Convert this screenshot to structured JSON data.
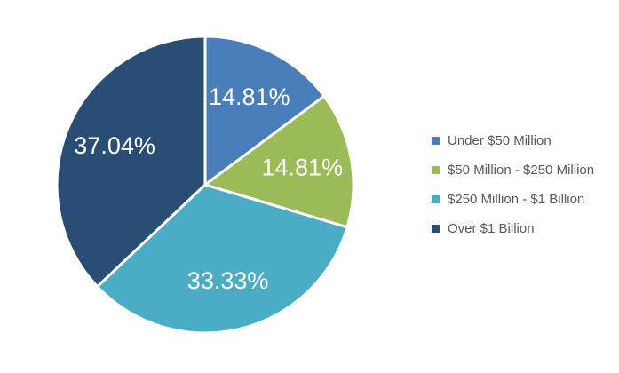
{
  "chart_data": {
    "type": "pie",
    "title": "",
    "labels": [
      "Under $50 Million",
      "$50 Million - $250 Million",
      "$250 Million - $1 Billion",
      "Over $1 Billion"
    ],
    "values": [
      14.81,
      14.81,
      33.33,
      37.04
    ],
    "slice_labels": [
      "14.81%",
      "14.81%",
      "33.33%",
      "37.04%"
    ],
    "colors": [
      "#4A7EBB",
      "#9BBB59",
      "#4BACC6",
      "#2A4D75"
    ],
    "slice_label_color": "#FFFFFF",
    "separator_color": "#FFFFFF",
    "legend_text_color": "#595959",
    "background_color": "#FFFFFF",
    "legend_position": "right",
    "start_angle_deg": 0,
    "direction": "clockwise"
  }
}
